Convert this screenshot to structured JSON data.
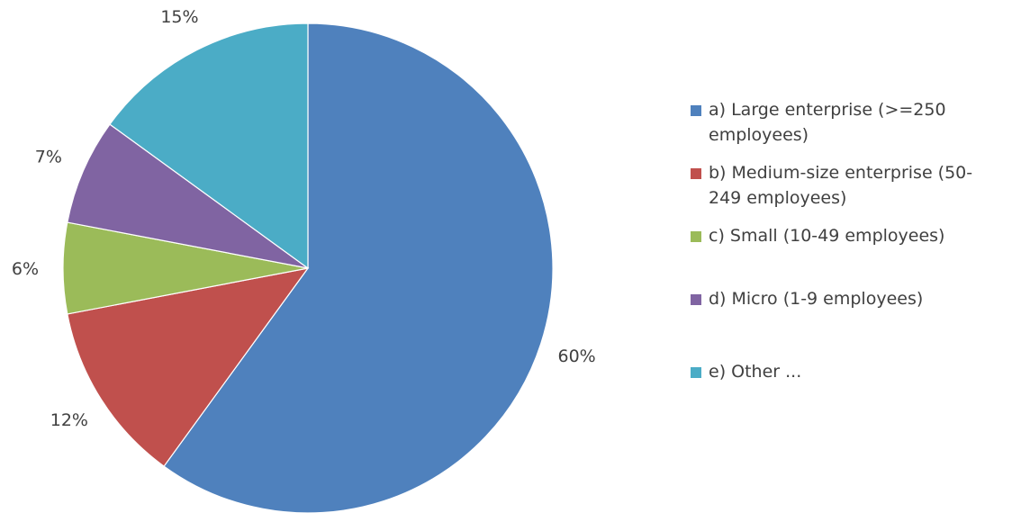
{
  "chart_data": {
    "type": "pie",
    "title": "",
    "slices": [
      {
        "label": "a) Large enterprise (>=250 employees)",
        "value": 60,
        "value_label": "60%",
        "color": "#4F81BD"
      },
      {
        "label": "b) Medium-size enterprise (50-249 employees)",
        "value": 12,
        "value_label": "12%",
        "color": "#C0504D"
      },
      {
        "label": "c) Small (10-49 employees)",
        "value": 6,
        "value_label": "6%",
        "color": "#9BBB59"
      },
      {
        "label": "d) Micro (1-9 employees)",
        "value": 7,
        "value_label": "7%",
        "color": "#8064A2"
      },
      {
        "label": "e) Other ...",
        "value": 15,
        "value_label": "15%",
        "color": "#4BACC6"
      }
    ],
    "start_angle": "12 o'clock",
    "direction": "clockwise",
    "legend_position": "right"
  }
}
